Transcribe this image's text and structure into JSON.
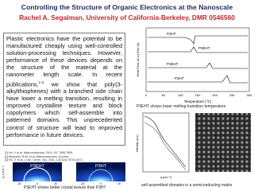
{
  "header": {
    "title": "Controlling the Structure of Organic Electronics at the Nanoscale",
    "subtitle": "Rachel A. Segalman, University of California-Berkeley, DMR 0546560"
  },
  "body": {
    "paragraph_start": "Plastic electronics have the potential to be manufactured cheaply using well-controlled solution-processing techniques. However, performance of these devices depends on the structure of the material at the nanometer length scale. In recent publications,",
    "citation": "1-3",
    "paragraph_end": " we show that poly(3-alkylthiophenes) with a branched side chain have lower a melting transition, resulting in improved crystalline texture and block copolymers which self-assemble into patterned domains. This unprecedented control of structure will lead to improved performance in future devices."
  },
  "references": [
    "[1] Ho, V et al, Macromolecules, 2010, 43, 7895-7899.",
    "[2] Beaudoin, B.W. et al. Macromolecules, in press.",
    "[3] Ho, V. et al, J. Am. Chem. Soc. 2011, 133 (24), 9270-9273."
  ],
  "dsc": {
    "y_label": "Heat Flow (a.u.) Exo Up",
    "x_label": "Temperature (°C)",
    "x_ticks": [
      "0",
      "50",
      "100",
      "150",
      "200",
      "250",
      "300"
    ],
    "curve_labels": [
      "P3HT",
      "P3EHT",
      "P3EHT",
      "P3HT"
    ],
    "caption": "P3EHT shows lower melting transition temperature"
  },
  "giwaxs": {
    "labels": [
      "P3EHT",
      "P3HT"
    ],
    "x_ticks": [
      "-20",
      "0",
      "20"
    ],
    "y_label": "q_z (nm⁻¹)",
    "x_label": "q_xy (nm⁻¹)",
    "caption": "P3EHT shows better crystal texture than P3HT"
  },
  "saxs": {
    "y_label": "Intensity (a.u.)",
    "x_label": "q (nm⁻¹)",
    "caption": "self-assembled domains in a semiconducting matrix"
  }
}
